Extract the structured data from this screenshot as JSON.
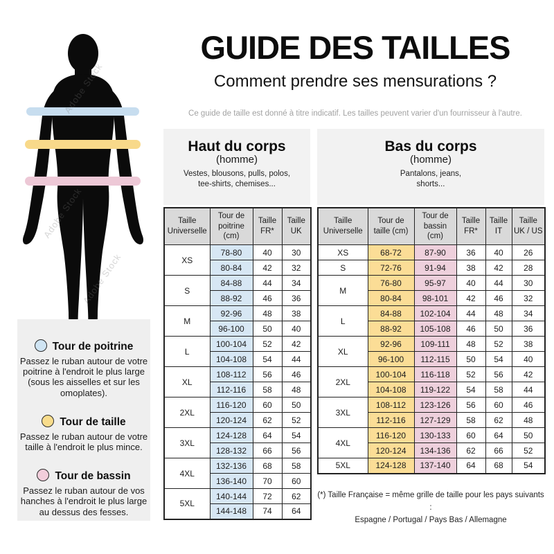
{
  "watermark": "Adobe Stock",
  "header": {
    "title": "GUIDE DES TAILLES",
    "subtitle": "Comment prendre ses mensurations ?",
    "note": "Ce guide de taille est donné à titre indicatif. Les tailles peuvent varier d'un fournisseur à l'autre."
  },
  "colors": {
    "chest_band": "#c7ddef",
    "waist_band": "#f8d98a",
    "hip_band": "#edc8d6",
    "table_header_bg": "#d9d9d9",
    "panel_bg": "#f2f2f2",
    "legend_panel_bg": "#efefef"
  },
  "legend": {
    "items": [
      {
        "color": "#cfe4f3",
        "title": "Tour de poitrine",
        "description": "Passez le ruban autour de votre poitrine à l'endroit le plus large (sous les aisselles et sur les omoplates)."
      },
      {
        "color": "#f8dc8c",
        "title": "Tour de taille",
        "description": "Passez le ruban autour de votre taille à l'endroit le plus mince."
      },
      {
        "color": "#f2cedb",
        "title": "Tour de bassin",
        "description": "Passez le ruban autour de vos hanches à l'endroit le plus large au dessus des fesses."
      }
    ]
  },
  "upper_section": {
    "title": "Haut du corps",
    "subtitle": "(homme)",
    "description": "Vestes, blousons, pulls, polos, tee-shirts, chemises...",
    "table": {
      "headers": [
        "Taille Universelle",
        "Tour de poitrine (cm)",
        "Taille FR*",
        "Taille UK"
      ],
      "highlight_colors": [
        "#d7e7f4",
        null,
        null
      ],
      "groups": [
        {
          "size": "XS",
          "rows": [
            [
              "78-80",
              "40",
              "30"
            ],
            [
              "80-84",
              "42",
              "32"
            ]
          ]
        },
        {
          "size": "S",
          "rows": [
            [
              "84-88",
              "44",
              "34"
            ],
            [
              "88-92",
              "46",
              "36"
            ]
          ]
        },
        {
          "size": "M",
          "rows": [
            [
              "92-96",
              "48",
              "38"
            ],
            [
              "96-100",
              "50",
              "40"
            ]
          ]
        },
        {
          "size": "L",
          "rows": [
            [
              "100-104",
              "52",
              "42"
            ],
            [
              "104-108",
              "54",
              "44"
            ]
          ]
        },
        {
          "size": "XL",
          "rows": [
            [
              "108-112",
              "56",
              "46"
            ],
            [
              "112-116",
              "58",
              "48"
            ]
          ]
        },
        {
          "size": "2XL",
          "rows": [
            [
              "116-120",
              "60",
              "50"
            ],
            [
              "120-124",
              "62",
              "52"
            ]
          ]
        },
        {
          "size": "3XL",
          "rows": [
            [
              "124-128",
              "64",
              "54"
            ],
            [
              "128-132",
              "66",
              "56"
            ]
          ]
        },
        {
          "size": "4XL",
          "rows": [
            [
              "132-136",
              "68",
              "58"
            ],
            [
              "136-140",
              "70",
              "60"
            ]
          ]
        },
        {
          "size": "5XL",
          "rows": [
            [
              "140-144",
              "72",
              "62"
            ],
            [
              "144-148",
              "74",
              "64"
            ]
          ]
        }
      ]
    }
  },
  "lower_section": {
    "title": "Bas du corps",
    "subtitle": "(homme)",
    "description": "Pantalons, jeans, shorts...",
    "table": {
      "headers": [
        "Taille Universelle",
        "Tour de taille (cm)",
        "Tour de bassin (cm)",
        "Taille FR*",
        "Taille IT",
        "Taille UK / US"
      ],
      "highlight_colors": [
        "#fbdd96",
        "#eed0dc",
        null,
        null,
        null
      ],
      "groups": [
        {
          "size": "XS",
          "rows": [
            [
              "68-72",
              "87-90",
              "36",
              "40",
              "26"
            ]
          ]
        },
        {
          "size": "S",
          "rows": [
            [
              "72-76",
              "91-94",
              "38",
              "42",
              "28"
            ]
          ]
        },
        {
          "size": "M",
          "rows": [
            [
              "76-80",
              "95-97",
              "40",
              "44",
              "30"
            ],
            [
              "80-84",
              "98-101",
              "42",
              "46",
              "32"
            ]
          ]
        },
        {
          "size": "L",
          "rows": [
            [
              "84-88",
              "102-104",
              "44",
              "48",
              "34"
            ],
            [
              "88-92",
              "105-108",
              "46",
              "50",
              "36"
            ]
          ]
        },
        {
          "size": "XL",
          "rows": [
            [
              "92-96",
              "109-111",
              "48",
              "52",
              "38"
            ],
            [
              "96-100",
              "112-115",
              "50",
              "54",
              "40"
            ]
          ]
        },
        {
          "size": "2XL",
          "rows": [
            [
              "100-104",
              "116-118",
              "52",
              "56",
              "42"
            ],
            [
              "104-108",
              "119-122",
              "54",
              "58",
              "44"
            ]
          ]
        },
        {
          "size": "3XL",
          "rows": [
            [
              "108-112",
              "123-126",
              "56",
              "60",
              "46"
            ],
            [
              "112-116",
              "127-129",
              "58",
              "62",
              "48"
            ]
          ]
        },
        {
          "size": "4XL",
          "rows": [
            [
              "116-120",
              "130-133",
              "60",
              "64",
              "50"
            ],
            [
              "120-124",
              "134-136",
              "62",
              "66",
              "52"
            ]
          ]
        },
        {
          "size": "5XL",
          "rows": [
            [
              "124-128",
              "137-140",
              "64",
              "68",
              "54"
            ]
          ]
        }
      ]
    }
  },
  "footnote": {
    "line1": "(*) Taille Française = même grille de taille pour les pays suivants :",
    "line2": "Espagne / Portugal / Pays Bas / Allemagne"
  }
}
